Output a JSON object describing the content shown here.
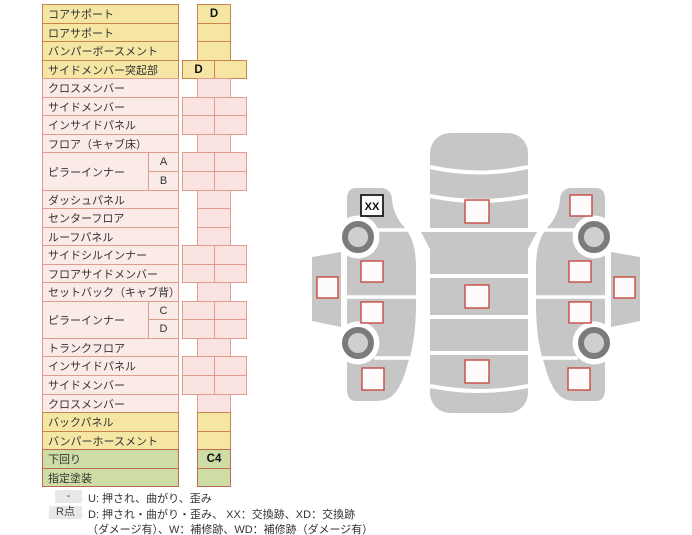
{
  "table": {
    "rows": [
      {
        "label": "コアサポート",
        "color": "yellow",
        "cells": "single",
        "values": [
          "D"
        ]
      },
      {
        "label": "ロアサポート",
        "color": "yellow",
        "cells": "single",
        "values": [
          ""
        ]
      },
      {
        "label": "バンパーボースメント",
        "color": "yellow",
        "cells": "single",
        "values": [
          ""
        ]
      },
      {
        "label": "サイドメンバー突起部",
        "color": "yellow",
        "cells": "double",
        "values": [
          "D",
          ""
        ]
      },
      {
        "label": "クロスメンバー",
        "color": "pink",
        "cells": "single",
        "values": [
          ""
        ]
      },
      {
        "label": "サイドメンバー",
        "color": "pink",
        "cells": "double",
        "values": [
          "",
          ""
        ]
      },
      {
        "label": "インサイドパネル",
        "color": "pink",
        "cells": "double",
        "values": [
          "",
          ""
        ]
      },
      {
        "label": "フロア（キャブ床）",
        "color": "pink",
        "cells": "single",
        "values": [
          ""
        ]
      },
      {
        "label": "ピラーインナー",
        "sub": "A",
        "span": 2,
        "color": "pink",
        "cells": "double",
        "values": [
          "",
          ""
        ]
      },
      {
        "sub": "B",
        "color": "pink",
        "cells": "double",
        "values": [
          "",
          ""
        ]
      },
      {
        "label": "ダッシュパネル",
        "color": "pink",
        "cells": "single",
        "values": [
          ""
        ]
      },
      {
        "label": "センターフロア",
        "color": "pink",
        "cells": "single",
        "values": [
          ""
        ]
      },
      {
        "label": "ルーフパネル",
        "color": "pink",
        "cells": "single",
        "values": [
          ""
        ]
      },
      {
        "label": "サイドシルインナー",
        "color": "pink",
        "cells": "double",
        "values": [
          "",
          ""
        ]
      },
      {
        "label": "フロアサイドメンバー",
        "color": "pink",
        "cells": "double",
        "values": [
          "",
          ""
        ]
      },
      {
        "label": "セットバック（キャブ背）",
        "color": "pink",
        "cells": "single",
        "values": [
          ""
        ]
      },
      {
        "label": "ピラーインナー",
        "sub": "C",
        "span": 2,
        "color": "pink",
        "cells": "double",
        "values": [
          "",
          ""
        ]
      },
      {
        "sub": "D",
        "color": "pink",
        "cells": "double",
        "values": [
          "",
          ""
        ]
      },
      {
        "label": "トランクフロア",
        "color": "pink",
        "cells": "single",
        "values": [
          ""
        ]
      },
      {
        "label": "インサイドパネル",
        "color": "pink",
        "cells": "double",
        "values": [
          "",
          ""
        ]
      },
      {
        "label": "サイドメンバー",
        "color": "pink",
        "cells": "double",
        "values": [
          "",
          ""
        ]
      },
      {
        "label": "クロスメンバー",
        "color": "pink",
        "cells": "single",
        "values": [
          ""
        ]
      },
      {
        "label": "バックパネル",
        "color": "yellow",
        "cells": "single",
        "values": [
          ""
        ]
      },
      {
        "label": "バンパーホースメント",
        "color": "yellow",
        "cells": "single",
        "values": [
          ""
        ]
      },
      {
        "label": "下回り",
        "color": "green",
        "cells": "single",
        "values": [
          "C4"
        ]
      },
      {
        "label": "指定塗装",
        "color": "green",
        "cells": "single",
        "values": [
          ""
        ]
      }
    ]
  },
  "legend": {
    "rows": [
      {
        "chip": "-",
        "text": "U: 押され、曲がり、歪み"
      },
      {
        "chip": "R点",
        "text": "D: 押され・曲がり・歪み、 XX：交換跡、XD：交換跡"
      },
      {
        "chip": "",
        "text": "（ダメージ有）、W：補修跡、WD：補修跡（ダメージ有）"
      }
    ]
  },
  "diagram": {
    "left_side": {
      "top_box_label": "XX",
      "boxes": [
        "",
        "",
        ""
      ],
      "fender_box": ""
    },
    "right_side": {
      "top_box_label": "",
      "boxes": [
        "",
        "",
        ""
      ],
      "fender_box": ""
    },
    "center_boxes": [
      "",
      "",
      ""
    ]
  },
  "colors": {
    "yellow_fill": "#F5E6A3",
    "yellow_border": "#C9834B",
    "pink_fill": "#FBEBE8",
    "pink_cell_fill": "#FAE3E0",
    "pink_border": "#E29C8D",
    "green_fill": "#CEDCA6",
    "green_border": "#BE6A4E",
    "chip_gray": "#E8E8E8",
    "marker_red": "#C94A42",
    "marker_black": "#1C1C1C",
    "body_gray": "#C6C6C6",
    "wheel_ring_gray": "#7B7B7B",
    "wheel_hub_gray": "#CFCFCF"
  }
}
